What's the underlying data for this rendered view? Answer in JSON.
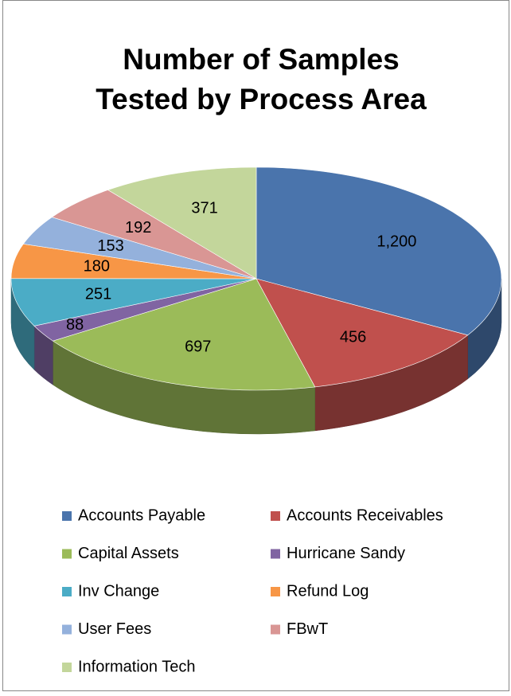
{
  "chart_data": {
    "type": "pie3d",
    "title": [
      "Number of Samples",
      "Tested by Process Area"
    ],
    "categories": [
      "Accounts Payable",
      "Accounts Receivables",
      "Capital Assets",
      "Hurricane Sandy",
      "Inv Change",
      "Refund Log",
      "User Fees",
      "FBwT",
      "Information Tech"
    ],
    "values": [
      1200,
      456,
      697,
      88,
      251,
      180,
      153,
      192,
      371
    ],
    "value_labels": [
      "1,200",
      "456",
      "697",
      "88",
      "251",
      "180",
      "153",
      "192",
      "371"
    ],
    "colors": [
      "#4a74ac",
      "#c0504d",
      "#9bbb59",
      "#8064a2",
      "#4bacc6",
      "#f79646",
      "#94b1dc",
      "#d99694",
      "#c3d69b"
    ],
    "legend": "bottom"
  }
}
